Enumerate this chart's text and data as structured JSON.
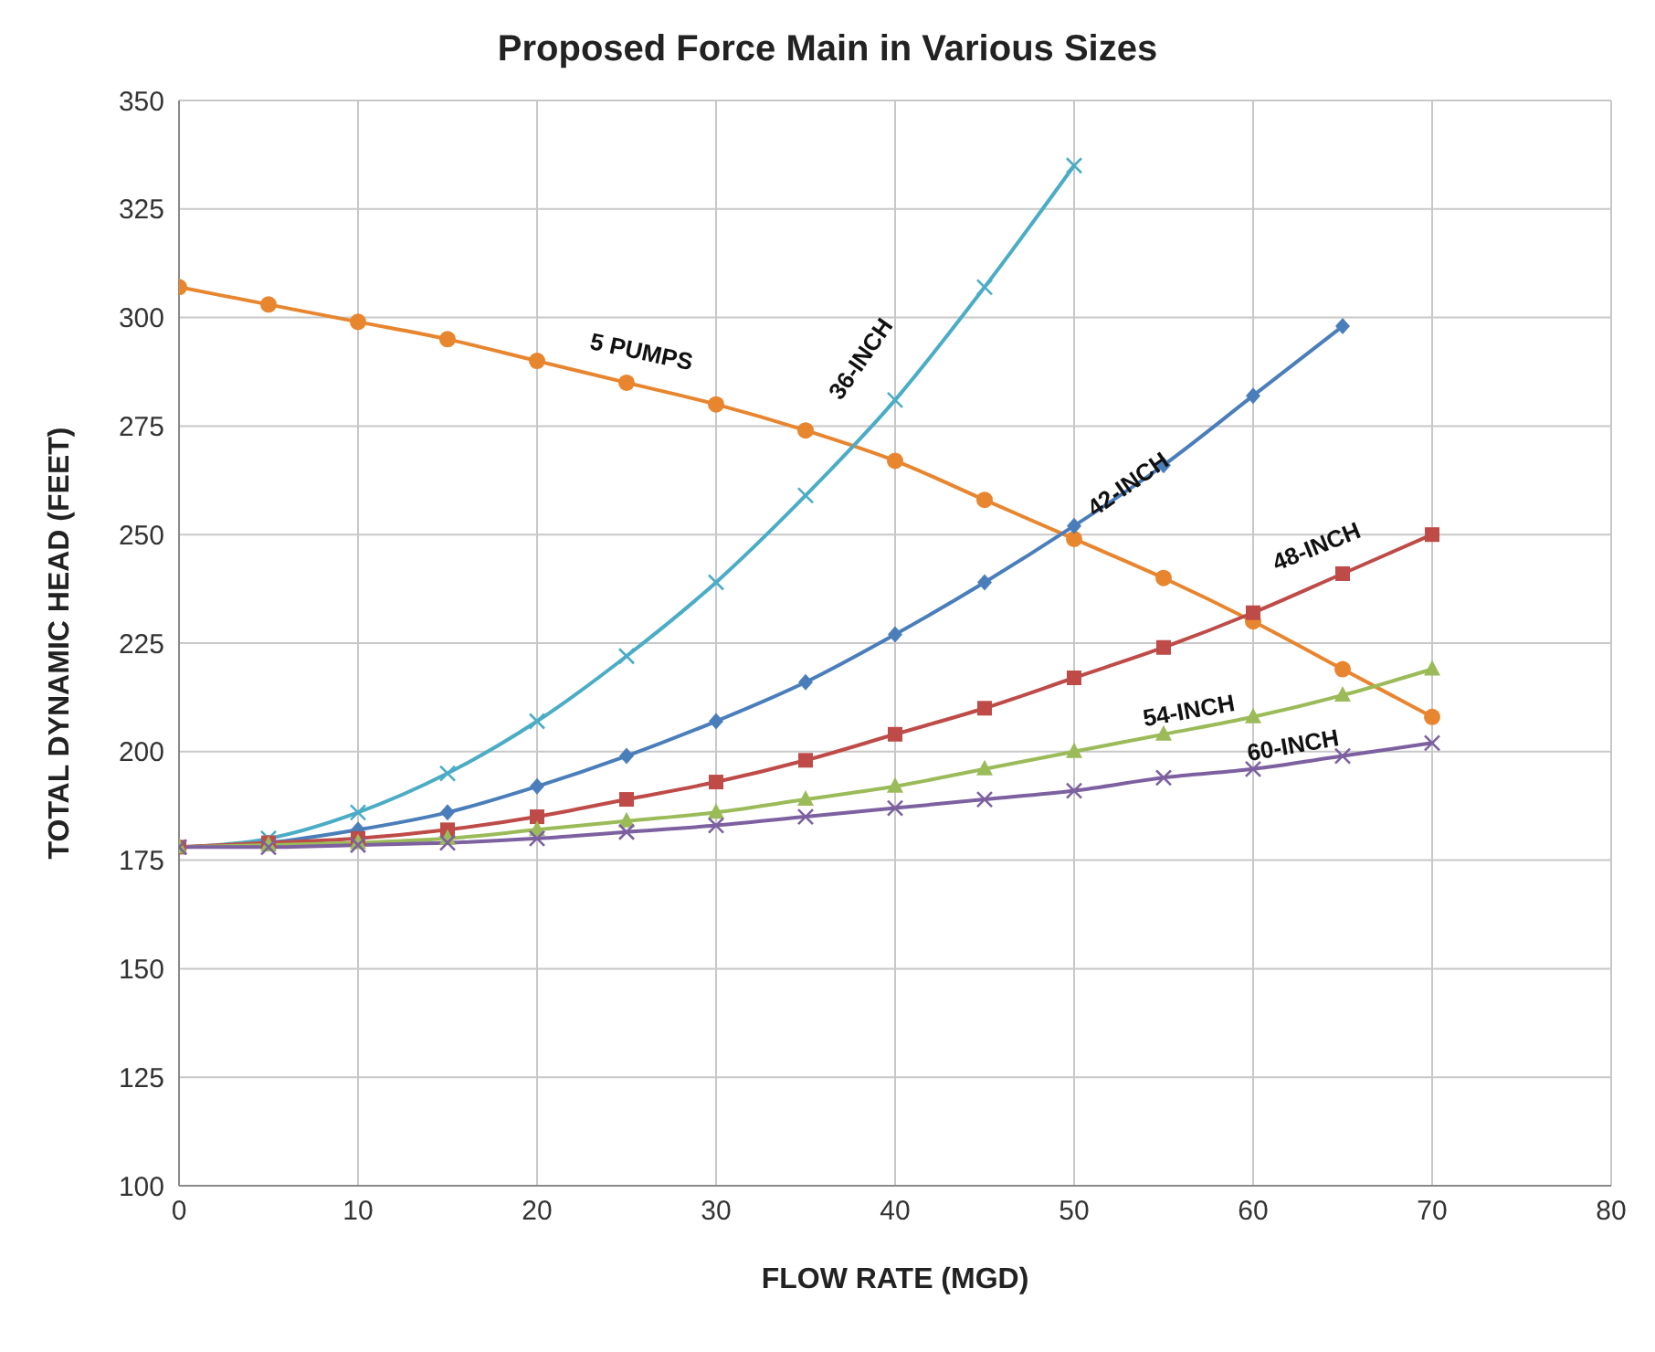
{
  "chart_data": {
    "type": "line",
    "title": "Proposed Force Main in Various Sizes",
    "xlabel": "FLOW RATE (MGD)",
    "ylabel": "TOTAL DYNAMIC HEAD (FEET)",
    "xlim": [
      0,
      80
    ],
    "xticks": [
      0,
      10,
      20,
      30,
      40,
      50,
      60,
      70,
      80
    ],
    "ylim": [
      100,
      350
    ],
    "yticks": [
      100,
      125,
      150,
      175,
      200,
      225,
      250,
      275,
      300,
      325,
      350
    ],
    "grid": true,
    "series": [
      {
        "name": "5 PUMPS",
        "color": "#e8852f",
        "marker": "circle",
        "x": [
          0,
          5,
          10,
          15,
          20,
          25,
          30,
          35,
          40,
          45,
          50,
          55,
          60,
          65,
          70
        ],
        "values": [
          307,
          303,
          299,
          295,
          290,
          285,
          280,
          274,
          267,
          258,
          249,
          240,
          230,
          219,
          208
        ]
      },
      {
        "name": "36-INCH",
        "color": "#4bacc6",
        "marker": "cross",
        "x": [
          0,
          5,
          10,
          15,
          20,
          25,
          30,
          35,
          40,
          45,
          50
        ],
        "values": [
          178,
          180,
          186,
          195,
          207,
          222,
          239,
          259,
          281,
          307,
          335
        ]
      },
      {
        "name": "42-INCH",
        "color": "#4a7ebb",
        "marker": "diamond",
        "x": [
          0,
          5,
          10,
          15,
          20,
          25,
          30,
          35,
          40,
          45,
          50,
          55,
          60,
          65
        ],
        "values": [
          178,
          179,
          182,
          186,
          192,
          199,
          207,
          216,
          227,
          239,
          252,
          266,
          282,
          298
        ]
      },
      {
        "name": "48-INCH",
        "color": "#be4b48",
        "marker": "square",
        "x": [
          0,
          5,
          10,
          15,
          20,
          25,
          30,
          35,
          40,
          45,
          50,
          55,
          60,
          65,
          70
        ],
        "values": [
          178,
          179,
          180,
          182,
          185,
          189,
          193,
          198,
          204,
          210,
          217,
          224,
          232,
          241,
          250
        ]
      },
      {
        "name": "54-INCH",
        "color": "#9bbb59",
        "marker": "triangle",
        "x": [
          0,
          5,
          10,
          15,
          20,
          25,
          30,
          35,
          40,
          45,
          50,
          55,
          60,
          65,
          70
        ],
        "values": [
          178,
          178.5,
          179,
          180,
          182,
          184,
          186,
          189,
          192,
          196,
          200,
          204,
          208,
          213,
          219
        ]
      },
      {
        "name": "60-INCH",
        "color": "#7d60a0",
        "marker": "cross",
        "x": [
          0,
          5,
          10,
          15,
          20,
          25,
          30,
          35,
          40,
          45,
          50,
          55,
          60,
          65,
          70
        ],
        "values": [
          178,
          178,
          178.5,
          179,
          180,
          181.5,
          183,
          185,
          187,
          189,
          191,
          194,
          196,
          199,
          202
        ]
      }
    ]
  }
}
